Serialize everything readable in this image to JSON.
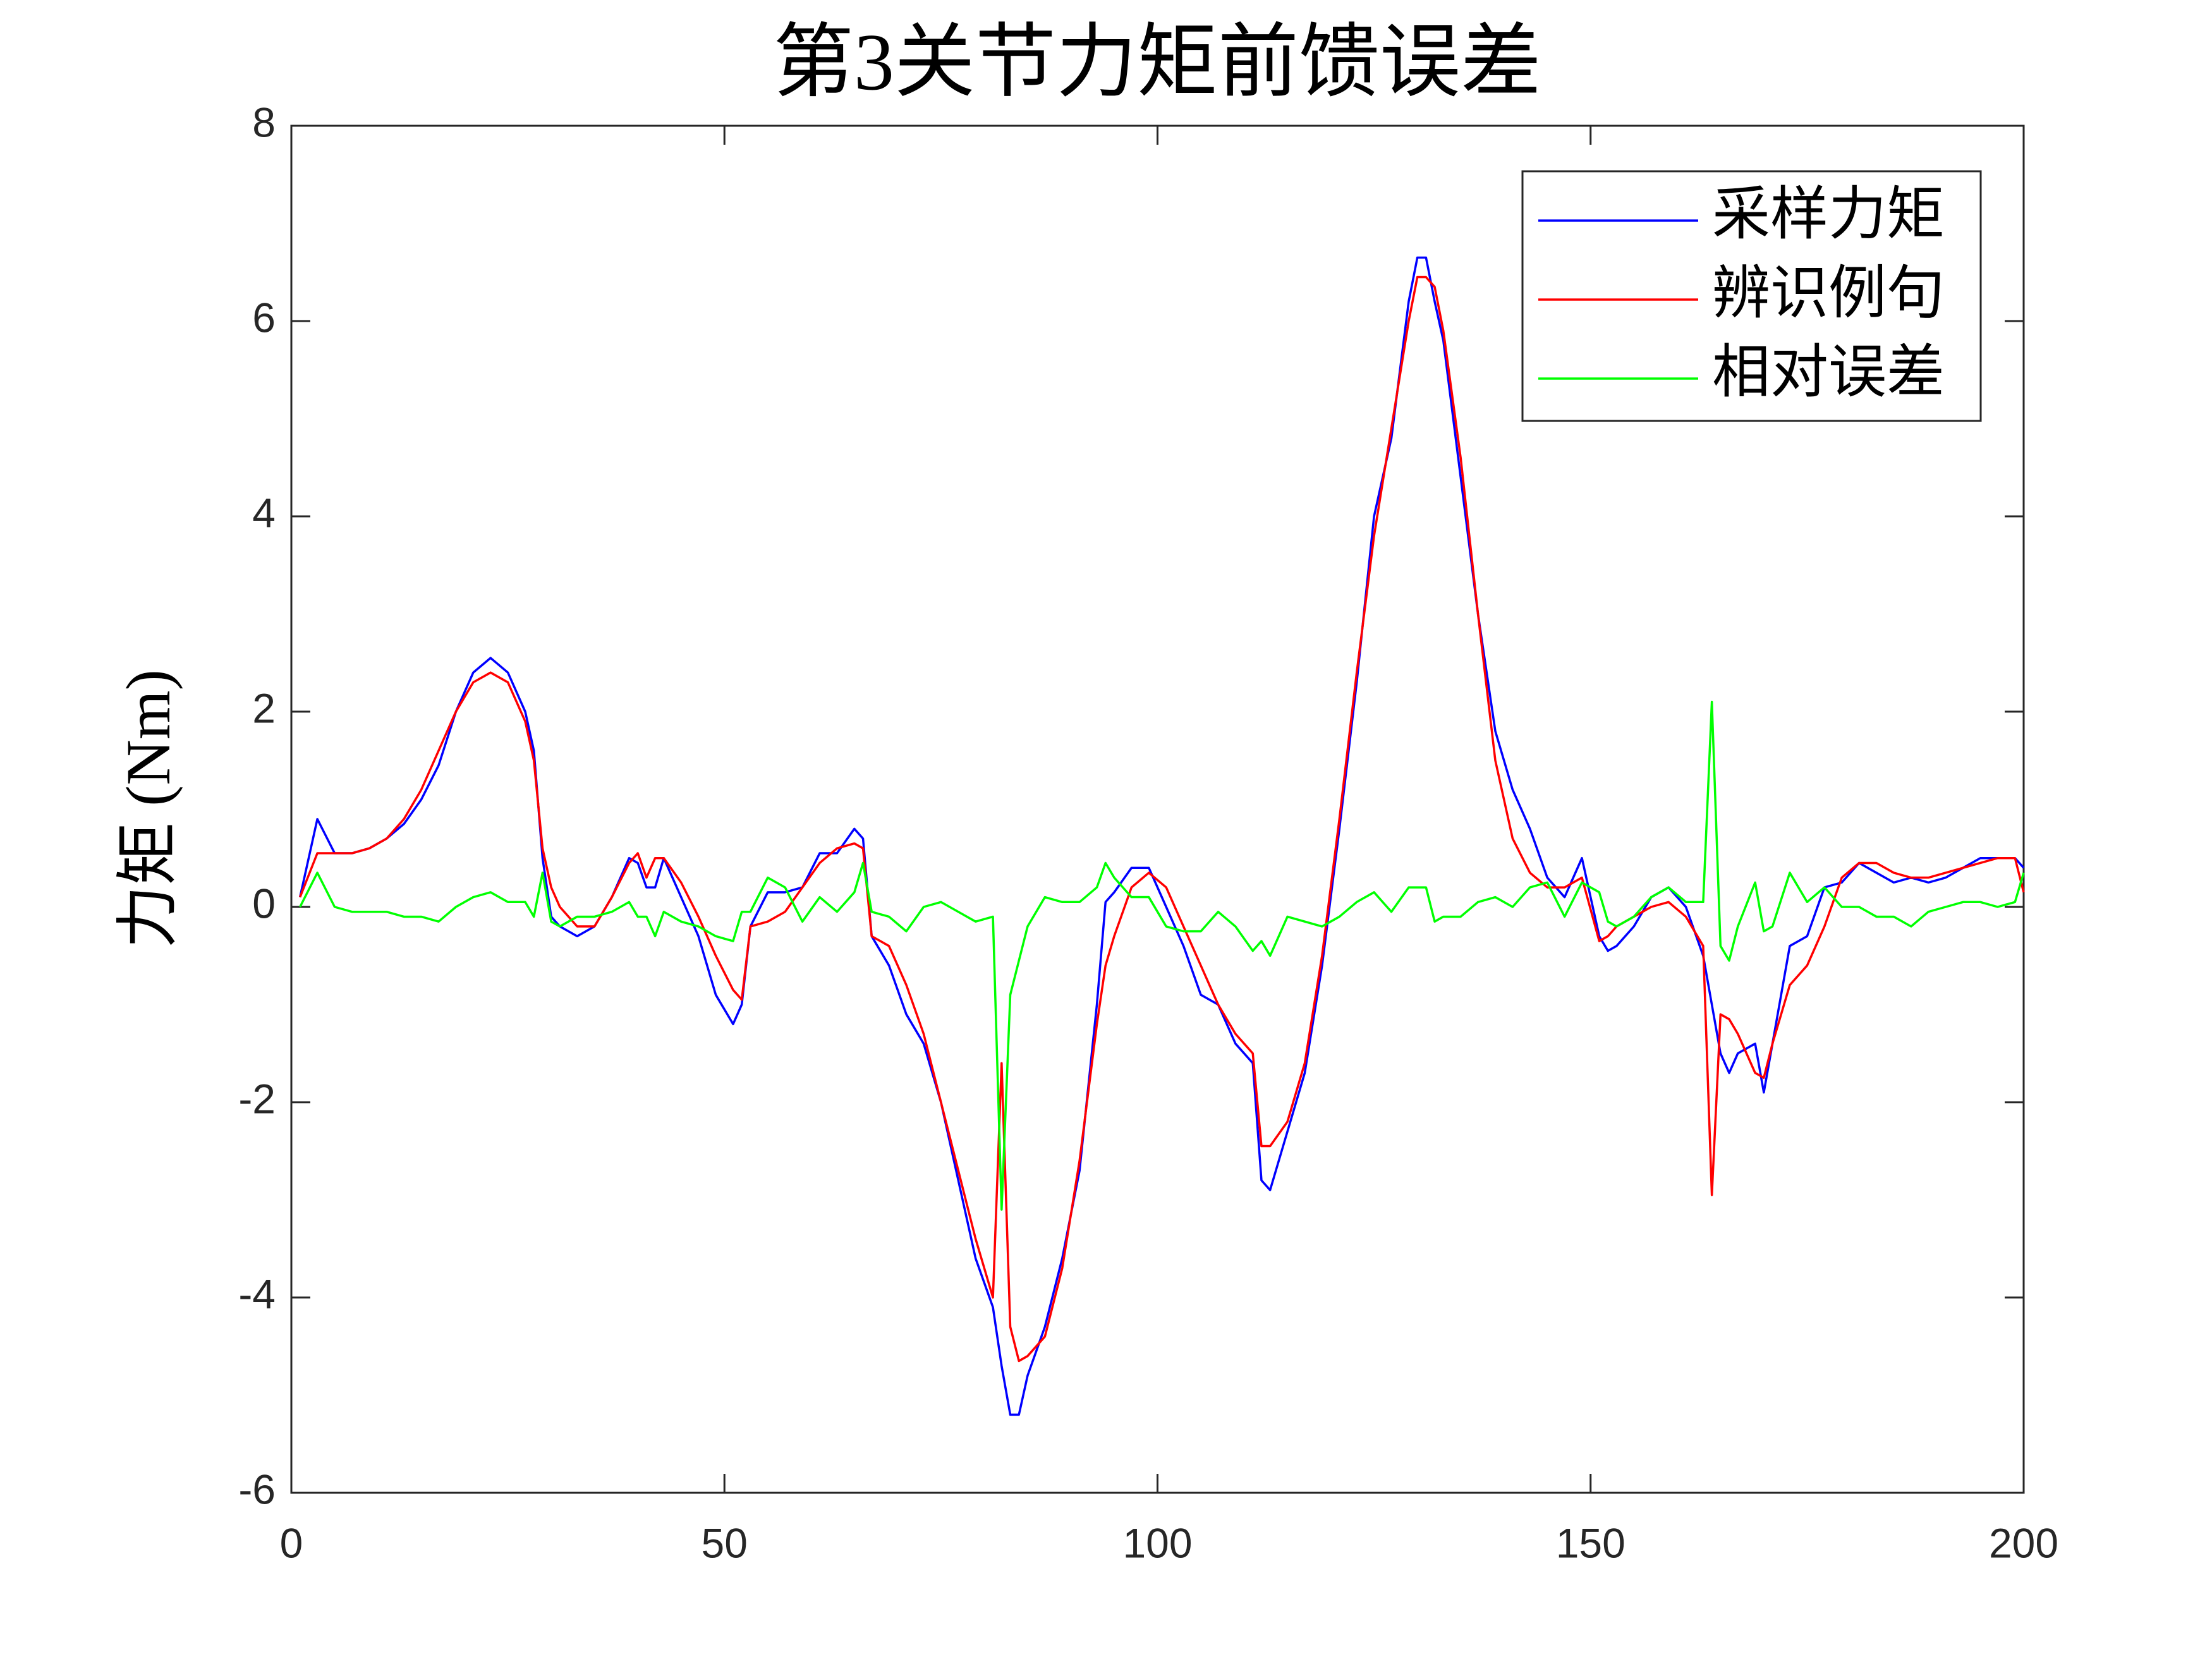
{
  "chart_data": {
    "type": "line",
    "title": "第3关节力矩前馈误差",
    "y_label": "力矩 (Nm)",
    "xlim": [
      0,
      200
    ],
    "xticks": [
      0,
      50,
      100,
      150,
      200
    ],
    "ylim": [
      -6,
      8
    ],
    "yticks": [
      -6,
      -4,
      -2,
      0,
      2,
      4,
      6,
      8
    ],
    "legend_position": "upper right",
    "x": [
      1,
      3,
      5,
      7,
      9,
      11,
      13,
      15,
      17,
      19,
      21,
      23,
      25,
      27,
      28,
      29,
      30,
      31,
      33,
      35,
      37,
      39,
      40,
      41,
      42,
      43,
      45,
      47,
      49,
      51,
      52,
      53,
      55,
      57,
      59,
      61,
      63,
      65,
      66,
      67,
      69,
      71,
      73,
      75,
      77,
      79,
      81,
      82,
      83,
      84,
      85,
      87,
      89,
      91,
      93,
      94,
      95,
      97,
      99,
      101,
      103,
      105,
      107,
      109,
      111,
      112,
      113,
      115,
      117,
      119,
      121,
      123,
      125,
      127,
      129,
      130,
      131,
      132,
      133,
      135,
      137,
      139,
      141,
      143,
      145,
      147,
      149,
      151,
      152,
      153,
      155,
      157,
      159,
      161,
      163,
      164,
      165,
      166,
      167,
      169,
      170,
      171,
      173,
      175,
      177,
      179,
      181,
      183,
      185,
      187,
      189,
      191,
      193,
      195,
      197,
      199,
      200
    ],
    "series": [
      {
        "name": "采样力矩",
        "color": "#0000ff",
        "values": [
          0.1,
          0.9,
          0.55,
          0.55,
          0.6,
          0.7,
          0.85,
          1.1,
          1.45,
          2.0,
          2.4,
          2.55,
          2.4,
          2.0,
          1.6,
          0.5,
          -0.1,
          -0.2,
          -0.3,
          -0.2,
          0.1,
          0.5,
          0.45,
          0.2,
          0.2,
          0.5,
          0.1,
          -0.3,
          -0.9,
          -1.2,
          -1.0,
          -0.2,
          0.15,
          0.15,
          0.2,
          0.55,
          0.55,
          0.8,
          0.7,
          -0.3,
          -0.6,
          -1.1,
          -1.4,
          -2.0,
          -2.8,
          -3.6,
          -4.1,
          -4.7,
          -5.2,
          -5.2,
          -4.8,
          -4.3,
          -3.6,
          -2.7,
          -1.0,
          0.05,
          0.15,
          0.4,
          0.4,
          0.0,
          -0.4,
          -0.9,
          -1.0,
          -1.4,
          -1.6,
          -2.8,
          -2.9,
          -2.3,
          -1.7,
          -0.6,
          0.8,
          2.3,
          4.0,
          4.8,
          6.2,
          6.65,
          6.65,
          6.2,
          5.8,
          4.4,
          3.0,
          1.8,
          1.2,
          0.8,
          0.3,
          0.1,
          0.5,
          -0.3,
          -0.45,
          -0.4,
          -0.2,
          0.1,
          0.2,
          0.0,
          -0.5,
          -1.0,
          -1.5,
          -1.7,
          -1.5,
          -1.4,
          -1.9,
          -1.4,
          -0.4,
          -0.3,
          0.2,
          0.25,
          0.45,
          0.35,
          0.25,
          0.3,
          0.25,
          0.3,
          0.4,
          0.5,
          0.5,
          0.5,
          0.4
        ]
      },
      {
        "name": "辨识例句",
        "color": "#ff0000",
        "values": [
          0.1,
          0.55,
          0.55,
          0.55,
          0.6,
          0.7,
          0.9,
          1.2,
          1.6,
          2.0,
          2.3,
          2.4,
          2.3,
          1.9,
          1.5,
          0.6,
          0.2,
          0.0,
          -0.2,
          -0.2,
          0.1,
          0.45,
          0.55,
          0.3,
          0.5,
          0.5,
          0.25,
          -0.1,
          -0.5,
          -0.85,
          -0.95,
          -0.2,
          -0.15,
          -0.05,
          0.2,
          0.45,
          0.6,
          0.65,
          0.6,
          -0.3,
          -0.4,
          -0.8,
          -1.3,
          -2.0,
          -2.7,
          -3.4,
          -4.0,
          -1.6,
          -4.3,
          -4.65,
          -4.6,
          -4.4,
          -3.7,
          -2.6,
          -1.2,
          -0.6,
          -0.3,
          0.2,
          0.35,
          0.2,
          -0.2,
          -0.6,
          -1.0,
          -1.3,
          -1.5,
          -2.45,
          -2.45,
          -2.2,
          -1.6,
          -0.5,
          0.9,
          2.4,
          3.8,
          4.9,
          6.0,
          6.45,
          6.45,
          6.35,
          5.9,
          4.6,
          3.0,
          1.5,
          0.7,
          0.35,
          0.2,
          0.2,
          0.3,
          -0.35,
          -0.3,
          -0.2,
          -0.1,
          0.0,
          0.05,
          -0.1,
          -0.4,
          -2.95,
          -1.1,
          -1.15,
          -1.3,
          -1.7,
          -1.75,
          -1.4,
          -0.8,
          -0.6,
          -0.2,
          0.3,
          0.45,
          0.45,
          0.35,
          0.3,
          0.3,
          0.35,
          0.4,
          0.45,
          0.5,
          0.5,
          0.15
        ]
      },
      {
        "name": "相对误差",
        "color": "#00ff00",
        "values": [
          0.0,
          0.35,
          0.0,
          -0.05,
          -0.05,
          -0.05,
          -0.1,
          -0.1,
          -0.15,
          0.0,
          0.1,
          0.15,
          0.05,
          0.05,
          -0.1,
          0.35,
          -0.15,
          -0.2,
          -0.1,
          -0.1,
          -0.05,
          0.05,
          -0.1,
          -0.1,
          -0.3,
          -0.05,
          -0.15,
          -0.2,
          -0.3,
          -0.35,
          -0.05,
          -0.05,
          0.3,
          0.2,
          -0.15,
          0.1,
          -0.05,
          0.15,
          0.45,
          -0.05,
          -0.1,
          -0.25,
          0.0,
          0.05,
          -0.05,
          -0.15,
          -0.1,
          -3.1,
          -0.9,
          -0.55,
          -0.2,
          0.1,
          0.05,
          0.05,
          0.2,
          0.45,
          0.3,
          0.1,
          0.1,
          -0.2,
          -0.25,
          -0.25,
          -0.05,
          -0.2,
          -0.45,
          -0.35,
          -0.5,
          -0.1,
          -0.15,
          -0.2,
          -0.1,
          0.05,
          0.15,
          -0.05,
          0.2,
          0.2,
          0.2,
          -0.15,
          -0.1,
          -0.1,
          0.05,
          0.1,
          0.0,
          0.2,
          0.25,
          -0.1,
          0.25,
          0.15,
          -0.15,
          -0.2,
          -0.1,
          0.1,
          0.2,
          0.05,
          0.05,
          2.1,
          -0.4,
          -0.55,
          -0.2,
          0.25,
          -0.25,
          -0.2,
          0.35,
          0.05,
          0.2,
          0.0,
          0.0,
          -0.1,
          -0.1,
          -0.2,
          -0.05,
          0.0,
          0.05,
          0.05,
          0.0,
          0.05,
          0.35
        ]
      }
    ]
  }
}
